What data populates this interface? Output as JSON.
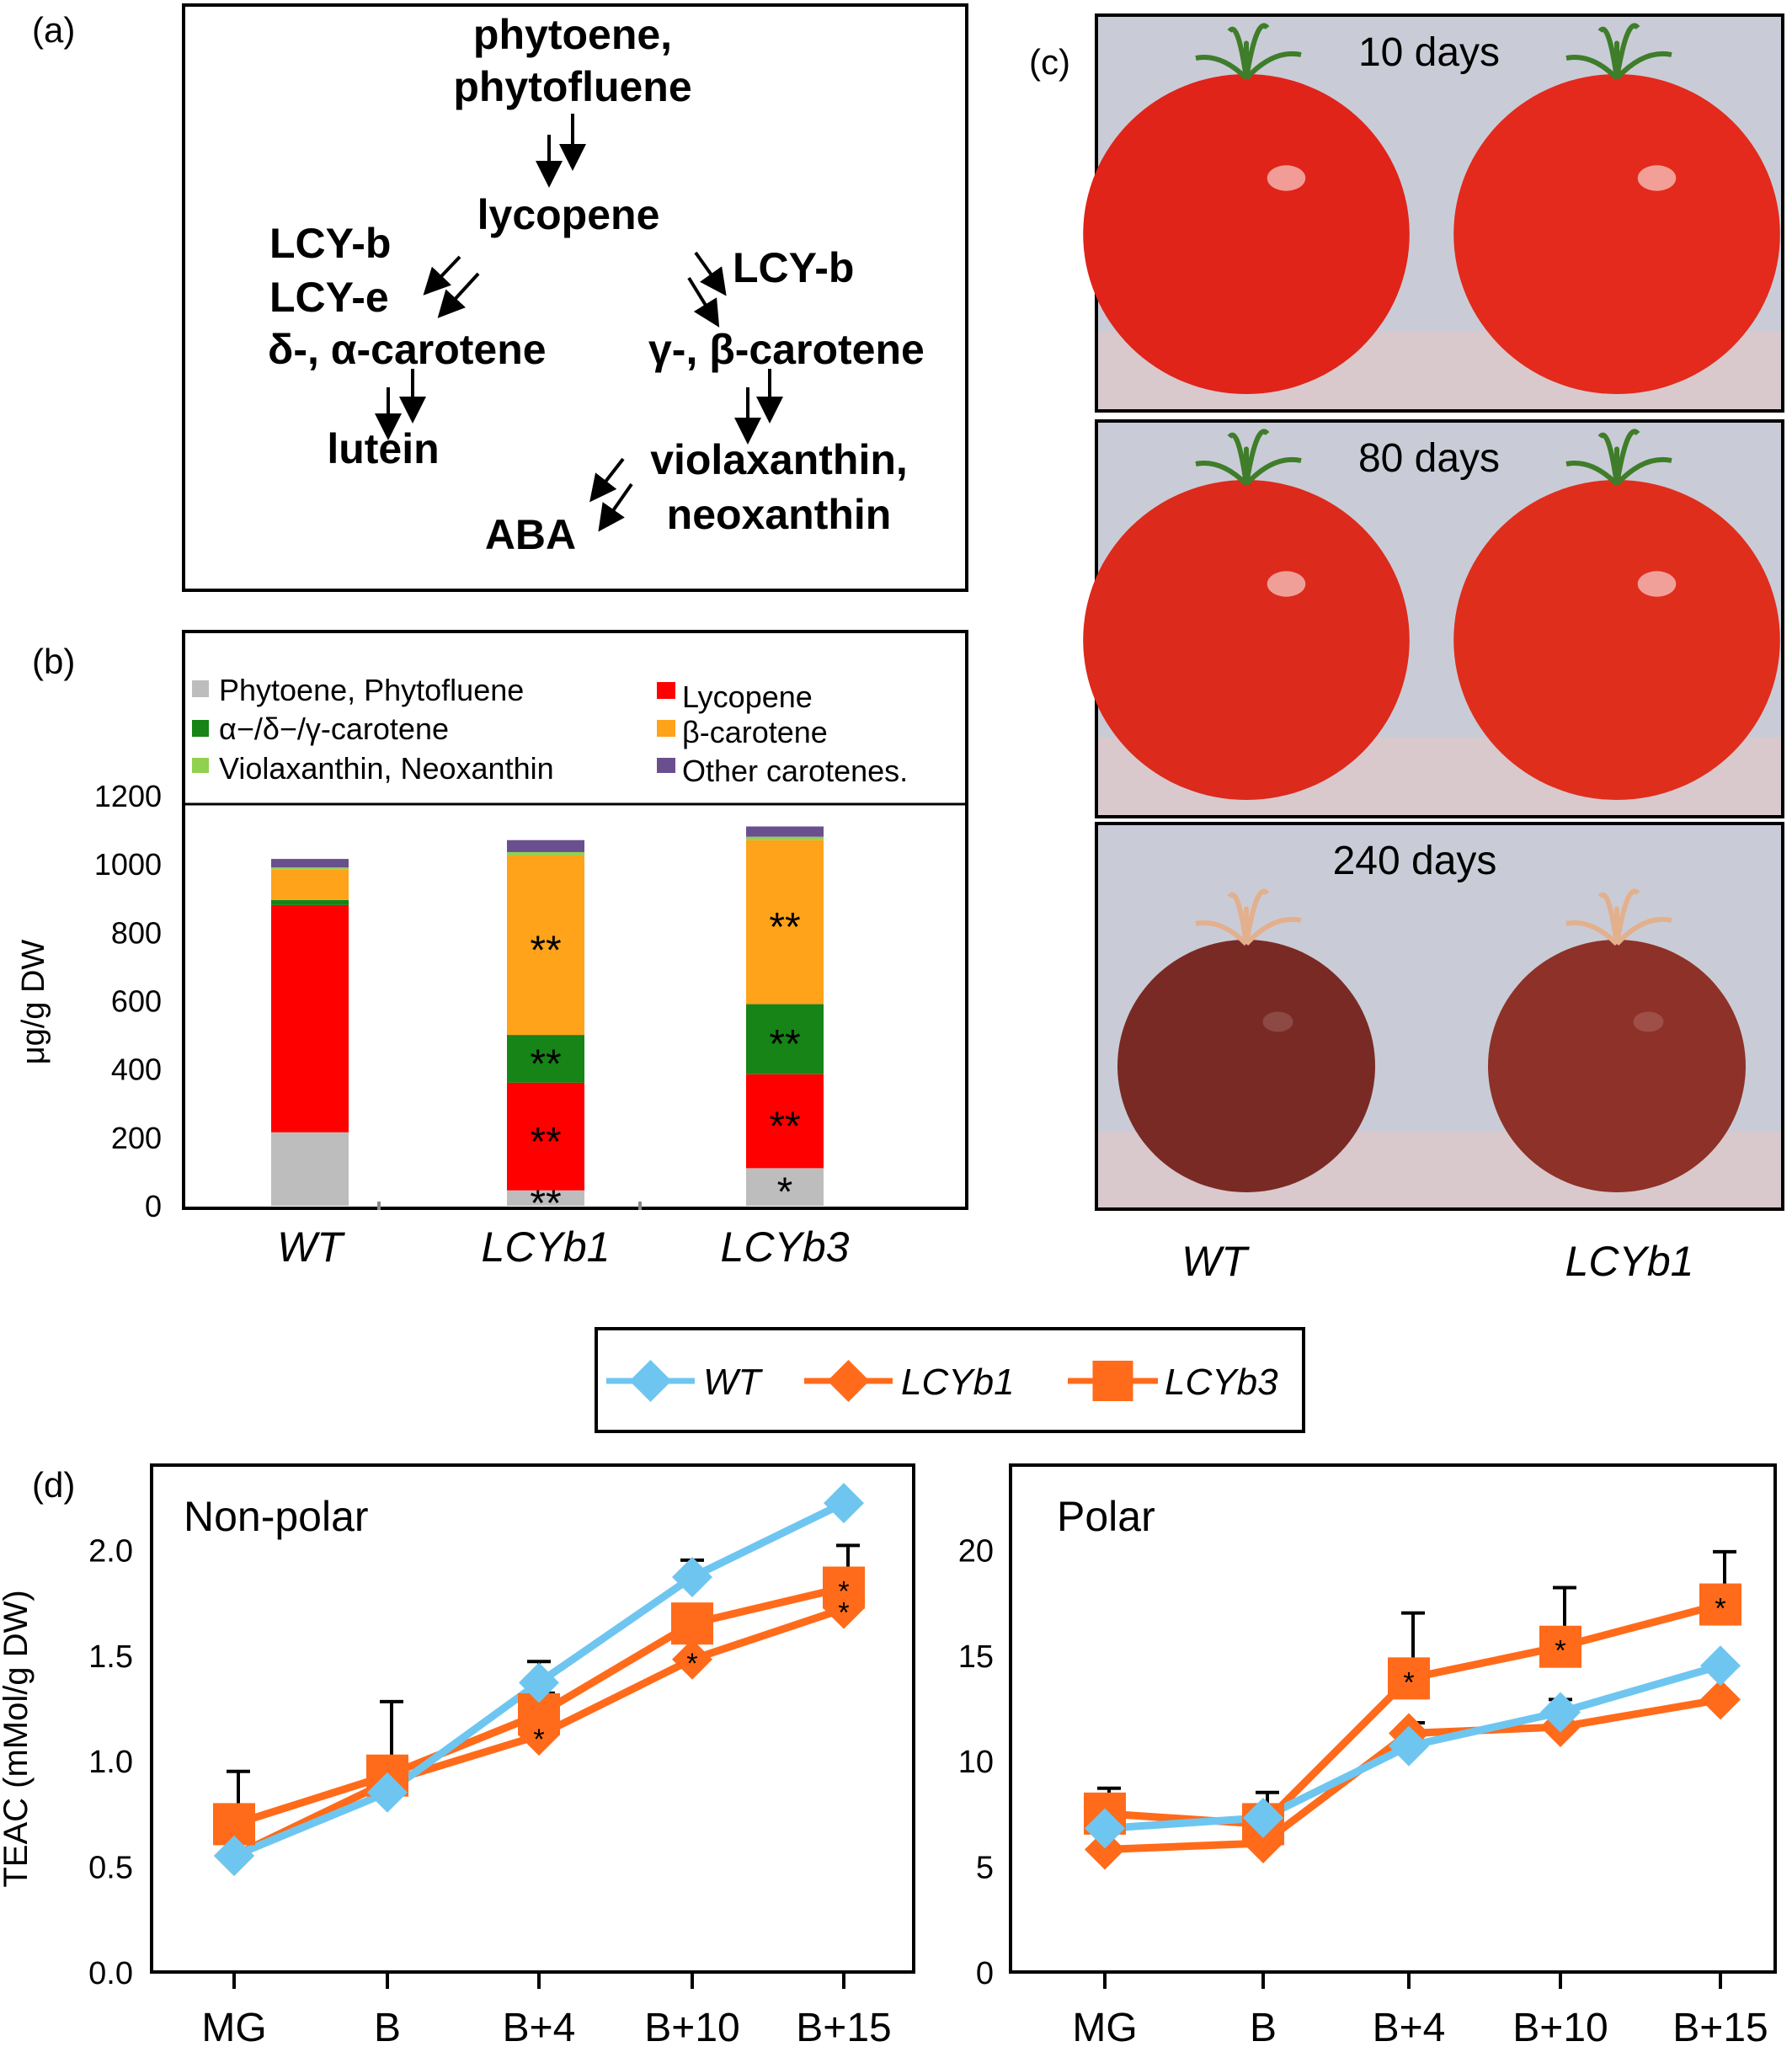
{
  "panel_labels": {
    "a": "(a)",
    "b": "(b)",
    "c": "(c)",
    "d": "(d)"
  },
  "pathway": {
    "phytoene_line1": "phytoene,",
    "phytoene_line2": "phytofluene",
    "lycopene": "lycopene",
    "left_enzyme_b": "LCY-b",
    "left_enzyme_e": "LCY-e",
    "delta_alpha": "δ-, α-carotene",
    "lutein": "lutein",
    "right_enzyme_b": "LCY-b",
    "gamma_beta": "γ-, β-carotene",
    "viola_line1": "violaxanthin,",
    "viola_line2": "neoxanthin",
    "aba": "ABA"
  },
  "photos": {
    "labels": [
      "10 days",
      "80 days",
      "240 days"
    ],
    "xlabels": [
      "WT",
      "LCYb1"
    ],
    "fruit_colors": [
      [
        "#e0241a",
        "#e32a1c"
      ],
      [
        "#dc2a1c",
        "#e02e1d"
      ],
      [
        "#7a2a24",
        "#8e3128"
      ]
    ]
  },
  "legend_d": {
    "entries": [
      "WT",
      "LCYb1",
      "LCYb3"
    ]
  },
  "colors": {
    "phytoene": "#bdbdbd",
    "lycopene": "#ff0000",
    "adg": "#168416",
    "beta": "#ffa31a",
    "viola": "#92d050",
    "other": "#6a4f8f",
    "wt": "#6ec6f0",
    "lcy": "#ff6b1a"
  },
  "chart_data": [
    {
      "type": "bar",
      "stacked": true,
      "ylabel": "μg/g DW",
      "ylim": [
        0,
        1200
      ],
      "yticks": [
        0,
        200,
        400,
        600,
        800,
        1000,
        1200
      ],
      "categories": [
        "WT",
        "LCYb1",
        "LCYb3"
      ],
      "legend": [
        "Phytoene, Phytofluene",
        "Lycopene",
        "α−/δ−/γ-carotene",
        "β-carotene",
        "Violaxanthin, Neoxanthin",
        "Other carotenes."
      ],
      "series": [
        {
          "name": "Phytoene, Phytofluene",
          "values": [
            215,
            45,
            110
          ],
          "marks": [
            "",
            "**",
            "*"
          ]
        },
        {
          "name": "Lycopene",
          "values": [
            665,
            315,
            275
          ],
          "marks": [
            "",
            "**",
            "**"
          ]
        },
        {
          "name": "α−/δ−/γ-carotene",
          "values": [
            15,
            140,
            205
          ],
          "marks": [
            "",
            "**",
            "**"
          ]
        },
        {
          "name": "β-carotene",
          "values": [
            90,
            525,
            480
          ],
          "marks": [
            "",
            "**",
            "**"
          ]
        },
        {
          "name": "Violaxanthin, Neoxanthin",
          "values": [
            5,
            10,
            10
          ],
          "marks": [
            "",
            "",
            ""
          ]
        },
        {
          "name": "Other carotenes.",
          "values": [
            25,
            35,
            30
          ],
          "marks": [
            "",
            "",
            ""
          ]
        }
      ]
    },
    {
      "type": "line",
      "title": "Non-polar",
      "ylabel": "TEAC (mMol/g DW)",
      "ylim": [
        0,
        2.4
      ],
      "yticks": [
        "0.0",
        "0.5",
        "1.0",
        "1.5",
        "2.0"
      ],
      "ytick_values": [
        0,
        0.5,
        1.0,
        1.5,
        2.0
      ],
      "categories": [
        "MG",
        "B",
        "B+4",
        "B+10",
        "B+15"
      ],
      "series": [
        {
          "name": "WT",
          "values": [
            0.55,
            0.85,
            1.37,
            1.87,
            2.22
          ],
          "err": [
            0,
            0,
            0.1,
            0.08,
            0
          ],
          "stars": [
            "",
            "",
            "",
            "",
            ""
          ]
        },
        {
          "name": "LCYb1",
          "values": [
            0.55,
            0.9,
            1.12,
            1.48,
            1.72
          ],
          "err": [
            0,
            0,
            0,
            0,
            0.05
          ],
          "stars": [
            "",
            "",
            "*",
            "*",
            "*"
          ]
        },
        {
          "name": "LCYb3",
          "values": [
            0.7,
            0.93,
            1.22,
            1.65,
            1.82
          ],
          "err": [
            0.25,
            0.35,
            0.1,
            0,
            0.2
          ],
          "stars": [
            "",
            "",
            "",
            "",
            "*"
          ]
        }
      ]
    },
    {
      "type": "line",
      "title": "Polar",
      "ylim": [
        0,
        24
      ],
      "yticks": [
        "0",
        "5",
        "10",
        "15",
        "20"
      ],
      "ytick_values": [
        0,
        5,
        10,
        15,
        20
      ],
      "categories": [
        "MG",
        "B",
        "B+4",
        "B+10",
        "B+15"
      ],
      "series": [
        {
          "name": "WT",
          "values": [
            6.8,
            7.3,
            10.7,
            12.3,
            14.5
          ],
          "err": [
            0,
            0,
            0,
            0.6,
            0.3
          ],
          "stars": [
            "",
            "",
            "",
            "",
            ""
          ]
        },
        {
          "name": "LCYb1",
          "values": [
            5.8,
            6.1,
            11.3,
            11.6,
            12.9
          ],
          "err": [
            0,
            0,
            0.5,
            0,
            0
          ],
          "stars": [
            "",
            "",
            "",
            "",
            ""
          ]
        },
        {
          "name": "LCYb3",
          "values": [
            7.5,
            7.0,
            13.9,
            15.4,
            17.4
          ],
          "err": [
            1.2,
            1.5,
            3.1,
            2.8,
            2.5
          ],
          "stars": [
            "",
            "",
            "*",
            "*",
            "*"
          ]
        }
      ]
    }
  ]
}
